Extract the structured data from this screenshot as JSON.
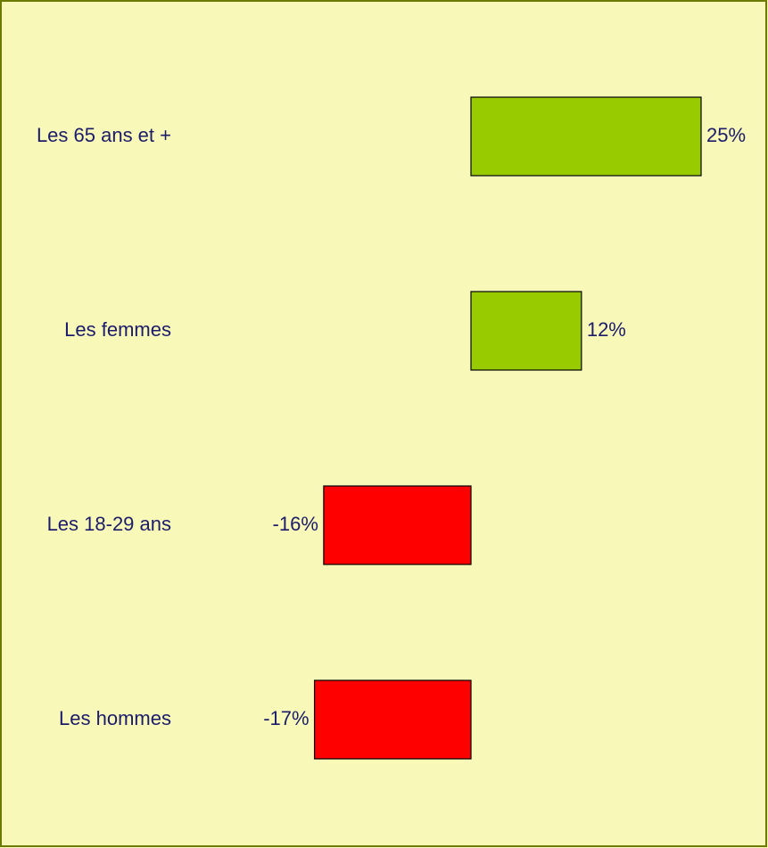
{
  "chart_data": {
    "type": "bar",
    "orientation": "horizontal",
    "categories": [
      "Les 65 ans et +",
      "Les femmes",
      "Les 18-29 ans",
      "Les hommes"
    ],
    "values": [
      25,
      12,
      -16,
      -17
    ],
    "value_labels": [
      "25%",
      "12%",
      "-16%",
      "-17%"
    ],
    "colors": [
      "#99cc00",
      "#99cc00",
      "#ff0000",
      "#ff0000"
    ]
  }
}
